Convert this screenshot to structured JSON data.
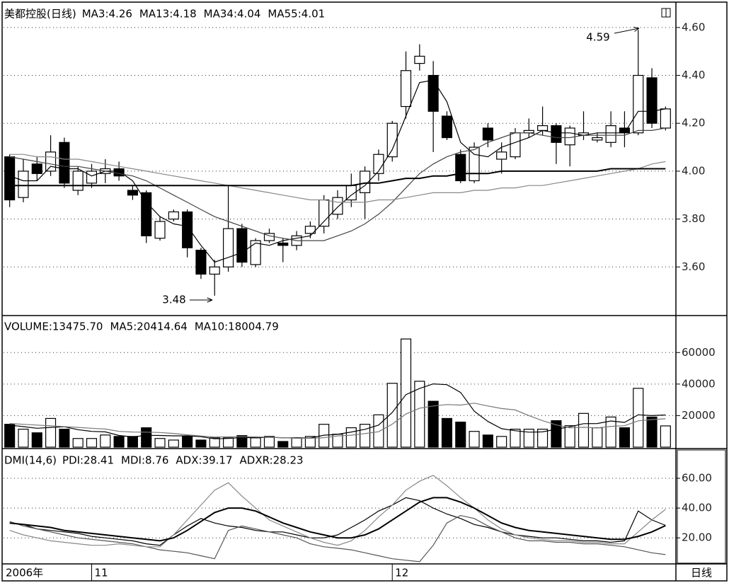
{
  "chart_data": [
    {
      "type": "candlestick",
      "title": "美都控股(日线)",
      "categories": [
        "2006年",
        null,
        null,
        null,
        null,
        null,
        "11",
        null,
        null,
        null,
        null,
        null,
        null,
        null,
        null,
        null,
        null,
        null,
        null,
        null,
        null,
        null,
        null,
        null,
        null,
        null,
        null,
        null,
        "12",
        null,
        null,
        null,
        null,
        null,
        null,
        null,
        null,
        null,
        null,
        null,
        null,
        null,
        null,
        null,
        null,
        null,
        null,
        null,
        null
      ],
      "xlabel": "日线",
      "open": [
        4.06,
        3.89,
        4.03,
        4.0,
        4.12,
        3.92,
        3.95,
        3.99,
        4.01,
        3.92,
        3.91,
        3.72,
        3.8,
        3.83,
        3.67,
        3.57,
        3.6,
        3.76,
        3.61,
        3.71,
        3.7,
        3.69,
        3.74,
        3.77,
        3.82,
        3.88,
        3.91,
        3.99,
        4.06,
        4.27,
        4.45,
        4.4,
        4.23,
        4.07,
        3.96,
        4.18,
        4.05,
        4.06,
        4.16,
        4.17,
        4.19,
        4.11,
        4.15,
        4.13,
        4.12,
        4.18,
        4.16,
        4.39,
        4.18
      ],
      "high": [
        4.07,
        4.05,
        4.06,
        4.15,
        4.14,
        4.02,
        4.03,
        4.05,
        4.04,
        3.94,
        3.92,
        3.81,
        3.84,
        3.84,
        3.68,
        3.63,
        3.94,
        3.78,
        3.72,
        3.76,
        3.72,
        3.75,
        3.79,
        3.9,
        3.92,
        3.99,
        4.02,
        4.09,
        4.21,
        4.5,
        4.53,
        4.46,
        4.25,
        4.09,
        4.12,
        4.2,
        4.12,
        4.18,
        4.22,
        4.27,
        4.2,
        4.19,
        4.25,
        4.16,
        4.25,
        4.25,
        4.59,
        4.43,
        4.27
      ],
      "low": [
        3.85,
        3.87,
        3.96,
        3.98,
        3.93,
        3.9,
        3.93,
        3.95,
        3.96,
        3.88,
        3.7,
        3.71,
        3.79,
        3.64,
        3.55,
        3.48,
        3.58,
        3.6,
        3.6,
        3.7,
        3.62,
        3.67,
        3.72,
        3.74,
        3.8,
        3.85,
        3.8,
        3.96,
        4.04,
        4.22,
        4.42,
        4.08,
        4.13,
        3.95,
        3.95,
        4.1,
        3.99,
        4.05,
        4.14,
        4.15,
        4.03,
        4.02,
        4.13,
        4.12,
        4.1,
        4.1,
        4.15,
        4.18,
        4.17
      ],
      "close": [
        3.88,
        4.0,
        3.99,
        4.08,
        3.95,
        4.0,
        4.0,
        4.01,
        3.98,
        3.9,
        3.73,
        3.79,
        3.83,
        3.68,
        3.57,
        3.6,
        3.76,
        3.62,
        3.71,
        3.74,
        3.69,
        3.73,
        3.77,
        3.88,
        3.89,
        3.94,
        4.0,
        4.07,
        4.2,
        4.42,
        4.48,
        4.25,
        4.14,
        3.96,
        4.1,
        4.13,
        4.08,
        4.16,
        4.17,
        4.19,
        4.12,
        4.18,
        4.16,
        4.14,
        4.19,
        4.16,
        4.4,
        4.2,
        4.26
      ],
      "up_color": "#ffffff",
      "down_color": "#000000",
      "series": [
        {
          "name": "MA3:4.26",
          "color": "#000000",
          "values": [
            3.98,
            3.96,
            3.96,
            4.02,
            4.01,
            4.01,
            3.98,
            4.0,
            4.0,
            3.96,
            3.87,
            3.81,
            3.78,
            3.77,
            3.69,
            3.62,
            3.64,
            3.66,
            3.7,
            3.69,
            3.71,
            3.72,
            3.73,
            3.79,
            3.85,
            3.9,
            3.94,
            4.0,
            4.09,
            4.23,
            4.37,
            4.38,
            4.29,
            4.12,
            4.07,
            4.06,
            4.1,
            4.12,
            4.14,
            4.17,
            4.16,
            4.16,
            4.15,
            4.16,
            4.16,
            4.16,
            4.25,
            4.25,
            4.26
          ]
        },
        {
          "name": "MA13:4.18",
          "color": "#444444",
          "values": [
            4.06,
            4.05,
            4.04,
            4.03,
            4.02,
            4.02,
            4.01,
            4.0,
            3.99,
            3.98,
            3.96,
            3.93,
            3.9,
            3.87,
            3.84,
            3.81,
            3.79,
            3.77,
            3.75,
            3.73,
            3.72,
            3.71,
            3.71,
            3.71,
            3.73,
            3.75,
            3.78,
            3.82,
            3.87,
            3.93,
            3.99,
            4.03,
            4.06,
            4.08,
            4.09,
            4.12,
            4.14,
            4.16,
            4.16,
            4.15,
            4.14,
            4.14,
            4.15,
            4.15,
            4.15,
            4.15,
            4.17,
            4.17,
            4.18
          ]
        },
        {
          "name": "MA34:4.04",
          "color": "#888888",
          "values": [
            4.07,
            4.07,
            4.06,
            4.06,
            4.05,
            4.05,
            4.04,
            4.03,
            4.02,
            4.01,
            4.0,
            3.99,
            3.98,
            3.97,
            3.96,
            3.95,
            3.94,
            3.93,
            3.92,
            3.91,
            3.9,
            3.89,
            3.88,
            3.88,
            3.87,
            3.87,
            3.87,
            3.88,
            3.88,
            3.89,
            3.9,
            3.91,
            3.91,
            3.91,
            3.92,
            3.92,
            3.93,
            3.93,
            3.94,
            3.94,
            3.95,
            3.96,
            3.97,
            3.98,
            3.99,
            4.0,
            4.01,
            4.03,
            4.04
          ]
        },
        {
          "name": "MA55:4.01",
          "color": "#000000",
          "line_width": 2,
          "values": [
            3.94,
            3.94,
            3.94,
            3.94,
            3.94,
            3.94,
            3.94,
            3.94,
            3.94,
            3.94,
            3.94,
            3.94,
            3.94,
            3.94,
            3.94,
            3.94,
            3.94,
            3.94,
            3.94,
            3.94,
            3.94,
            3.94,
            3.94,
            3.94,
            3.94,
            3.94,
            3.95,
            3.95,
            3.96,
            3.97,
            3.97,
            3.98,
            3.98,
            3.99,
            3.99,
            3.99,
            4.0,
            4.0,
            4.0,
            4.0,
            4.0,
            4.0,
            4.0,
            4.0,
            4.01,
            4.01,
            4.01,
            4.01,
            4.01
          ]
        }
      ],
      "ylim": [
        3.4,
        4.7
      ],
      "yticks": [
        {
          "value": 3.6,
          "label": "3.60"
        },
        {
          "value": 3.8,
          "label": "3.80"
        },
        {
          "value": 4.0,
          "label": "4.00"
        },
        {
          "value": 4.2,
          "label": "4.20"
        },
        {
          "value": 4.4,
          "label": "4.40"
        },
        {
          "value": 4.6,
          "label": "4.60"
        }
      ],
      "grid": true,
      "annotations": [
        "4.59",
        "3.48"
      ]
    },
    {
      "type": "bar",
      "series": [
        {
          "name": "VOLUME:13475.70",
          "type": "bar",
          "values": [
            14500,
            11400,
            9100,
            18200,
            11400,
            5500,
            5500,
            7700,
            6800,
            6800,
            12300,
            5500,
            4500,
            6800,
            4500,
            5900,
            5900,
            7300,
            5900,
            6800,
            3600,
            5900,
            6800,
            14500,
            8200,
            12300,
            14500,
            20500,
            40500,
            68600,
            41800,
            29100,
            18200,
            15900,
            10000,
            7700,
            6800,
            11400,
            11400,
            11400,
            16800,
            13600,
            21400,
            12300,
            19100,
            12300,
            37300,
            19100,
            13475.7
          ]
        },
        {
          "name": "MA5:20414.64",
          "type": "line",
          "color": "#000000",
          "values": [
            14000,
            13000,
            12000,
            12500,
            12900,
            11100,
            10000,
            9700,
            7400,
            6500,
            7500,
            7400,
            7200,
            7200,
            6700,
            5300,
            5500,
            6100,
            6000,
            6300,
            5900,
            5900,
            5800,
            7600,
            8100,
            9600,
            11300,
            14000,
            22000,
            33300,
            37200,
            40100,
            39600,
            34700,
            22800,
            16300,
            11700,
            10400,
            9500,
            9700,
            11400,
            12900,
            14900,
            15000,
            16600,
            15700,
            20500,
            20000,
            20414.64
          ]
        },
        {
          "name": "MA10:18004.79",
          "type": "line",
          "color": "#777777",
          "values": [
            15000,
            14500,
            14000,
            13500,
            13000,
            12500,
            12000,
            11500,
            10000,
            9600,
            9500,
            9300,
            8700,
            7800,
            7100,
            6400,
            6600,
            6600,
            6500,
            6300,
            6000,
            5600,
            5600,
            6000,
            7100,
            7600,
            8600,
            9800,
            14600,
            21000,
            24700,
            26100,
            27000,
            26700,
            27900,
            26100,
            24500,
            23600,
            20000,
            16800,
            14100,
            12300,
            12600,
            12200,
            13200,
            13600,
            16700,
            17500,
            18004.79
          ]
        }
      ],
      "ylim": [
        0,
        83000
      ],
      "yticks": [
        20000,
        40000,
        60000
      ],
      "grid": true
    },
    {
      "type": "line",
      "title": "DMI(14,6)",
      "series": [
        {
          "name": "PDI:28.41",
          "color": "#000000",
          "values": [
            30,
            29,
            26,
            25,
            24,
            23,
            21,
            20,
            19,
            18,
            16,
            15,
            22,
            28,
            33,
            30,
            28,
            27,
            25,
            24,
            24,
            22,
            20,
            20,
            22,
            27,
            32,
            38,
            42,
            47,
            45,
            40,
            36,
            33,
            29,
            27,
            24,
            22,
            21,
            20,
            20,
            19,
            18,
            18,
            17,
            18,
            38,
            32,
            28.41
          ]
        },
        {
          "name": "MDI:8.76",
          "color": "#555555",
          "values": [
            31,
            28,
            26,
            24,
            22,
            20,
            19,
            18,
            17,
            16,
            14,
            12,
            11,
            10,
            8,
            6,
            25,
            28,
            26,
            24,
            22,
            20,
            16,
            14,
            13,
            12,
            10,
            8,
            6,
            5,
            4,
            15,
            30,
            35,
            33,
            28,
            24,
            20,
            18,
            18,
            17,
            17,
            16,
            16,
            15,
            14,
            12,
            10,
            8.76
          ]
        },
        {
          "name": "ADX:39.17",
          "color": "#888888",
          "values": [
            25,
            22,
            20,
            18,
            17,
            16,
            15,
            15,
            16,
            15,
            14,
            14,
            22,
            32,
            42,
            52,
            57,
            48,
            40,
            32,
            28,
            24,
            20,
            17,
            15,
            18,
            25,
            34,
            42,
            52,
            58,
            62,
            55,
            47,
            40,
            32,
            26,
            22,
            20,
            19,
            18,
            18,
            17,
            17,
            16,
            16,
            24,
            32,
            39.17
          ]
        },
        {
          "name": "ADXR:28.23",
          "color": "#000000",
          "line_width": 2,
          "values": [
            30,
            29,
            28,
            27,
            25,
            24,
            23,
            22,
            21,
            20,
            19,
            18,
            20,
            25,
            31,
            37,
            40,
            40,
            38,
            34,
            30,
            27,
            24,
            22,
            20,
            20,
            22,
            26,
            32,
            38,
            44,
            47,
            47,
            44,
            40,
            35,
            30,
            27,
            25,
            24,
            23,
            22,
            21,
            20,
            19,
            19,
            21,
            24,
            28.23
          ]
        }
      ],
      "ylim": [
        3,
        79
      ],
      "yticks": [
        {
          "value": 20,
          "label": "20.00"
        },
        {
          "value": 40,
          "label": "40.00"
        },
        {
          "value": 60,
          "label": "60.00"
        }
      ],
      "grid": true
    }
  ]
}
